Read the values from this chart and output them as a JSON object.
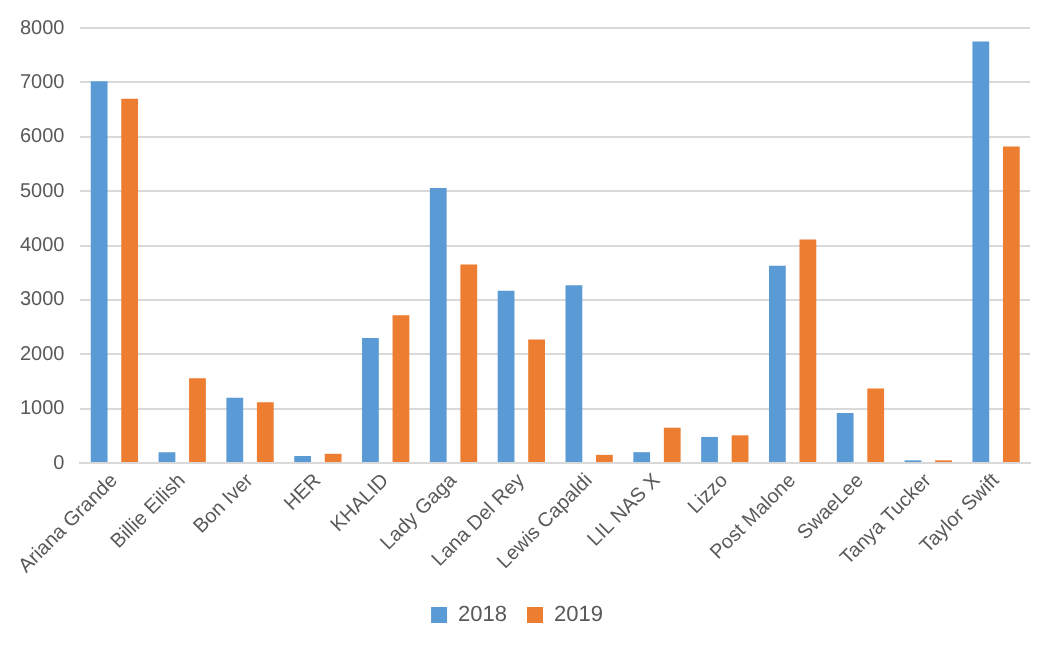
{
  "chart_data": {
    "type": "bar",
    "categories": [
      "Ariana Grande",
      "Billie Eilish",
      "Bon Iver",
      "HER",
      "KHALID",
      "Lady Gaga",
      "Lana Del Rey",
      "Lewis Capaldi",
      "LIL NAS X",
      "Lizzo",
      "Post Malone",
      "SwaeLee",
      "Tanya Tucker",
      "Taylor Swift"
    ],
    "series": [
      {
        "name": "2018",
        "color": "#5b9bd5",
        "values": [
          7020,
          200,
          1200,
          130,
          2300,
          5060,
          3170,
          3270,
          200,
          480,
          3630,
          920,
          50,
          7750
        ]
      },
      {
        "name": "2019",
        "color": "#ed7d31",
        "values": [
          6700,
          1560,
          1120,
          170,
          2720,
          3650,
          2270,
          150,
          650,
          510,
          4110,
          1370,
          50,
          5820
        ]
      }
    ],
    "ylim": [
      0,
      8000
    ],
    "yticks": [
      0,
      1000,
      2000,
      3000,
      4000,
      5000,
      6000,
      7000,
      8000
    ],
    "grid": "y",
    "legend": "bottom"
  }
}
